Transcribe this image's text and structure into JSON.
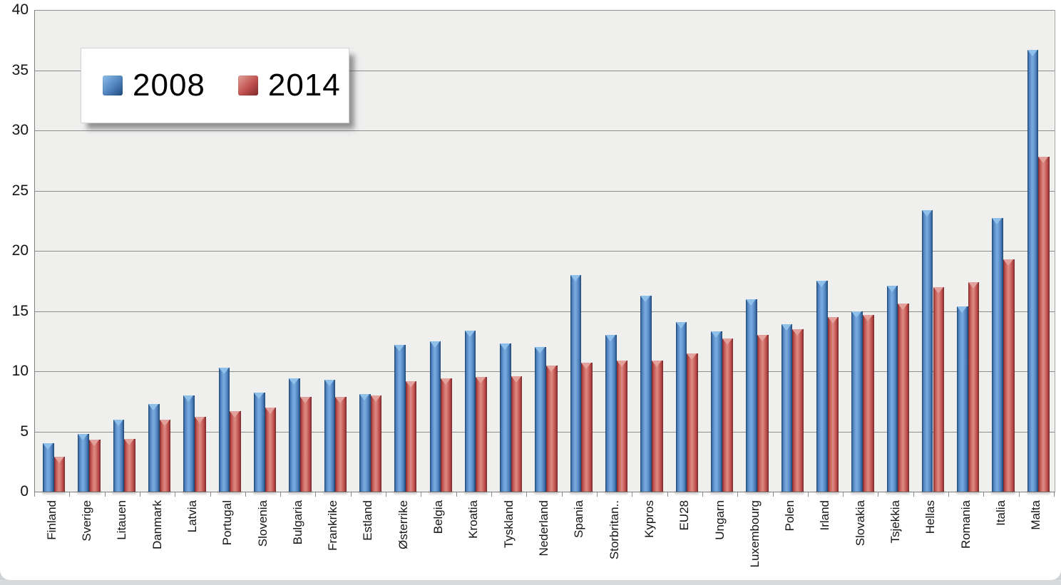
{
  "page": {
    "background": "#ffffff",
    "bottom_strip_color": "#d7dadc"
  },
  "chart_data": {
    "type": "bar",
    "title": "",
    "xlabel": "",
    "ylabel": "",
    "ylim": [
      0,
      40
    ],
    "yticks": [
      0,
      5,
      10,
      15,
      20,
      25,
      30,
      35,
      40
    ],
    "grid": true,
    "legend_position": "top-left",
    "plot_bg": "#efefee",
    "gridline_color": "#8e8e8e",
    "categories": [
      "Finland",
      "Sverige",
      "Litauen",
      "Danmark",
      "Latvia",
      "Portugal",
      "Slovenia",
      "Bulgaria",
      "Frankrike",
      "Estland",
      "Østerrike",
      "Belgia",
      "Kroatia",
      "Tyskland",
      "Nederland",
      "Spania",
      "Storbritan..",
      "Kypros",
      "EU28",
      "Ungarn",
      "Luxembourg",
      "Polen",
      "Irland",
      "Slovakia",
      "Tsjekkia",
      "Hellas",
      "Romania",
      "Italia",
      "Malta"
    ],
    "series": [
      {
        "name": "2008",
        "color": "#4F81BD",
        "edge_color": "#1f4a7a",
        "light_color": "#76a7dc",
        "cap_color": "#8fc0ea",
        "values": [
          4.0,
          4.8,
          6.0,
          7.3,
          8.0,
          10.3,
          8.2,
          9.4,
          9.3,
          8.1,
          12.2,
          12.5,
          13.4,
          12.3,
          12.0,
          18.0,
          13.0,
          16.3,
          14.1,
          13.3,
          16.0,
          13.9,
          17.5,
          15.0,
          17.1,
          23.4,
          15.4,
          22.7,
          36.7
        ]
      },
      {
        "name": "2014",
        "color": "#C0504D",
        "edge_color": "#7f2a2c",
        "light_color": "#d9847c",
        "cap_color": "#e2a29b",
        "values": [
          2.9,
          4.3,
          4.4,
          6.0,
          6.2,
          6.7,
          7.0,
          7.9,
          7.9,
          8.0,
          9.2,
          9.4,
          9.5,
          9.6,
          10.5,
          10.7,
          10.9,
          10.9,
          11.5,
          12.7,
          13.0,
          13.5,
          14.5,
          14.7,
          15.6,
          17.0,
          17.4,
          19.3,
          27.8
        ]
      }
    ]
  }
}
